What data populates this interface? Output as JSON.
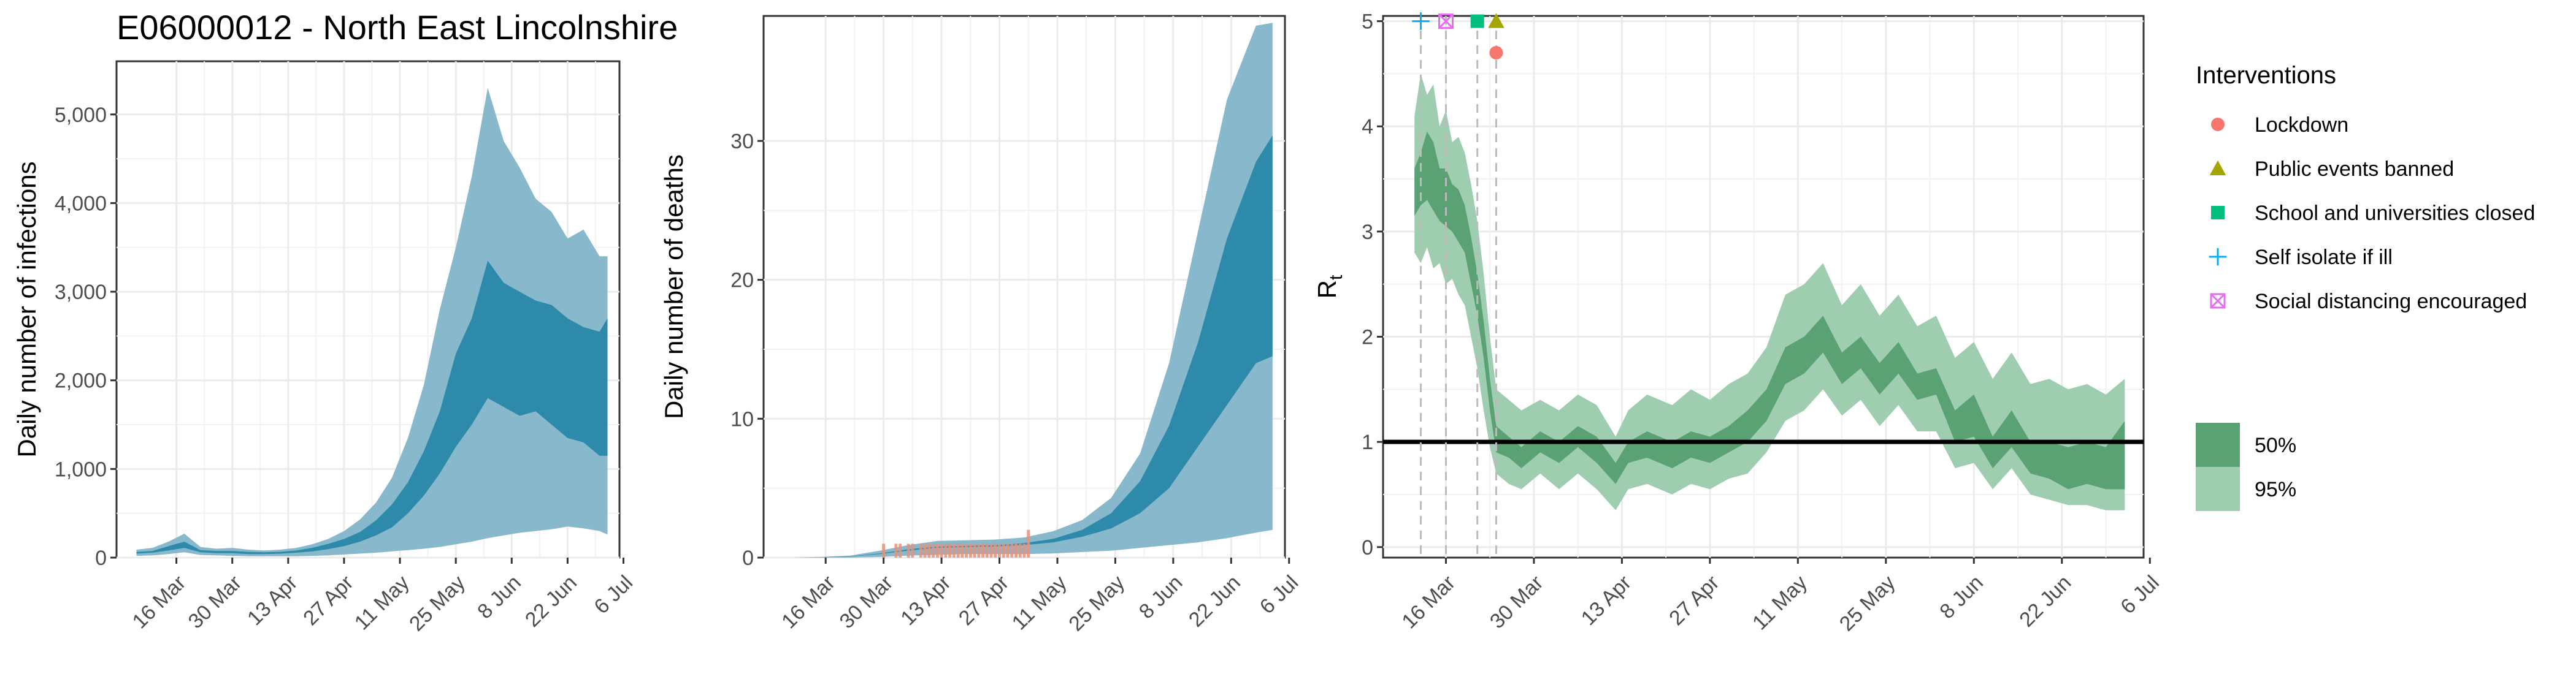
{
  "figure": {
    "title": "E06000012 - North East Lincolnshire"
  },
  "colors": {
    "infection_ci95": "#87b8cc",
    "infection_ci50": "#2d8aab",
    "deaths_ci95": "#87b8cc",
    "deaths_ci50": "#2d8aab",
    "observed_deaths": "#e8907a",
    "rt_ci95": "#9fcdb0",
    "rt_ci50": "#5aa273",
    "threshold_line": "#000000",
    "lockdown": "#f8766d",
    "public_events": "#a3a500",
    "school_closed": "#00bf7d",
    "self_isolate": "#00b0f6",
    "social_distancing": "#e76bf3"
  },
  "legend": {
    "interventions_title": "Interventions",
    "interventions": [
      {
        "label": "Lockdown",
        "shape": "circle"
      },
      {
        "label": "Public events banned",
        "shape": "triangle"
      },
      {
        "label": "School and universities closed",
        "shape": "square"
      },
      {
        "label": "Self isolate if ill",
        "shape": "plus"
      },
      {
        "label": "Social distancing encouraged",
        "shape": "boxcross"
      }
    ],
    "ci": [
      {
        "label": "50%"
      },
      {
        "label": "95%"
      }
    ]
  },
  "chart_data": [
    {
      "type": "area",
      "title": "E06000012 - North East Lincolnshire",
      "xlabel": "",
      "ylabel": "Daily number of infections",
      "x_ticks": [
        "16 Mar",
        "30 Mar",
        "13 Apr",
        "27 Apr",
        "11 May",
        "25 May",
        "8 Jun",
        "22 Jun",
        "6 Jul"
      ],
      "y_ticks": [
        "0",
        "1,000",
        "2,000",
        "3,000",
        "4,000",
        "5,000"
      ],
      "ylim": [
        0,
        5600
      ],
      "x_dates": [
        "Mar 6",
        "Mar 10",
        "Mar 14",
        "Mar 18",
        "Mar 22",
        "Mar 26",
        "Mar 30",
        "Apr 3",
        "Apr 7",
        "Apr 11",
        "Apr 15",
        "Apr 19",
        "Apr 23",
        "Apr 27",
        "May 1",
        "May 5",
        "May 9",
        "May 13",
        "May 17",
        "May 21",
        "May 25",
        "May 29",
        "Jun 2",
        "Jun 6",
        "Jun 10",
        "Jun 14",
        "Jun 18",
        "Jun 22",
        "Jun 26",
        "Jun 30",
        "Jul 2"
      ],
      "series": [
        {
          "name": "95%",
          "lower": [
            20,
            25,
            40,
            60,
            30,
            25,
            20,
            15,
            15,
            15,
            15,
            20,
            25,
            35,
            45,
            55,
            70,
            85,
            100,
            120,
            150,
            180,
            220,
            250,
            280,
            300,
            320,
            350,
            330,
            300,
            260
          ],
          "upper": [
            90,
            110,
            180,
            270,
            120,
            100,
            110,
            90,
            80,
            90,
            110,
            150,
            210,
            300,
            430,
            620,
            900,
            1350,
            1950,
            2800,
            3500,
            4300,
            5300,
            4700,
            4400,
            4050,
            3900,
            3600,
            3700,
            3400,
            3400
          ]
        },
        {
          "name": "50%",
          "lower": [
            45,
            55,
            80,
            110,
            60,
            50,
            50,
            40,
            40,
            45,
            55,
            70,
            95,
            130,
            180,
            250,
            340,
            500,
            700,
            950,
            1250,
            1500,
            1800,
            1700,
            1600,
            1650,
            1500,
            1350,
            1300,
            1150,
            1150
          ],
          "upper": [
            65,
            75,
            130,
            180,
            85,
            75,
            75,
            65,
            60,
            65,
            80,
            110,
            155,
            210,
            290,
            420,
            600,
            850,
            1200,
            1650,
            2300,
            2700,
            3350,
            3100,
            3000,
            2900,
            2850,
            2700,
            2600,
            2550,
            2700
          ]
        }
      ]
    },
    {
      "type": "area",
      "xlabel": "",
      "ylabel": "Daily number of deaths",
      "x_ticks": [
        "16 Mar",
        "30 Mar",
        "13 Apr",
        "27 Apr",
        "11 May",
        "25 May",
        "8 Jun",
        "22 Jun",
        "6 Jul"
      ],
      "y_ticks": [
        "0",
        "10",
        "20",
        "30"
      ],
      "ylim": [
        0,
        39
      ],
      "x_dates": [
        "Mar 8",
        "Mar 15",
        "Mar 22",
        "Mar 29",
        "Apr 5",
        "Apr 12",
        "Apr 19",
        "Apr 26",
        "May 3",
        "May 10",
        "May 17",
        "May 24",
        "May 31",
        "Jun 7",
        "Jun 14",
        "Jun 21",
        "Jun 28",
        "Jul 2"
      ],
      "series": [
        {
          "name": "95%",
          "lower": [
            0,
            0,
            0,
            0.05,
            0.15,
            0.2,
            0.25,
            0.25,
            0.25,
            0.3,
            0.4,
            0.5,
            0.7,
            0.9,
            1.1,
            1.4,
            1.8,
            2
          ],
          "upper": [
            0,
            0.05,
            0.15,
            0.5,
            0.9,
            1.2,
            1.25,
            1.3,
            1.45,
            1.9,
            2.7,
            4.3,
            7.5,
            14,
            23.5,
            33,
            38.3,
            38.5
          ]
        },
        {
          "name": "50%",
          "lower": [
            0,
            0.02,
            0.08,
            0.25,
            0.5,
            0.7,
            0.75,
            0.8,
            0.9,
            1.1,
            1.5,
            2.1,
            3.2,
            5,
            8,
            11,
            14,
            14.5
          ],
          "upper": [
            0,
            0.03,
            0.1,
            0.3,
            0.6,
            0.8,
            0.85,
            0.9,
            1.05,
            1.35,
            2,
            3.2,
            5.5,
            9.5,
            15.5,
            23,
            28.5,
            30.4
          ]
        }
      ],
      "observed_deaths": {
        "dates": [
          "Mar 30",
          "Mar 31",
          "Apr 2",
          "Apr 3",
          "Apr 4",
          "Apr 5",
          "Apr 6",
          "Apr 7",
          "Apr 8",
          "Apr 9",
          "Apr 10",
          "Apr 11",
          "Apr 12",
          "Apr 13",
          "Apr 14",
          "Apr 15",
          "Apr 16",
          "Apr 17",
          "Apr 18",
          "Apr 19",
          "Apr 20",
          "Apr 21",
          "Apr 22",
          "Apr 23",
          "Apr 24",
          "Apr 25",
          "Apr 26",
          "Apr 27",
          "Apr 28",
          "Apr 29",
          "Apr 30",
          "May 1",
          "May 2",
          "May 3",
          "May 4"
        ],
        "values": [
          1,
          0,
          1,
          1,
          0,
          1,
          1,
          0,
          1,
          1,
          1,
          1,
          1,
          1,
          1,
          1,
          1,
          1,
          1,
          1,
          1,
          1,
          1,
          1,
          1,
          1,
          1,
          1,
          1,
          1,
          1,
          1,
          1,
          1,
          2
        ]
      }
    },
    {
      "type": "area",
      "xlabel": "",
      "ylabel": "R",
      "ylabel_sub": "t",
      "x_ticks": [
        "16 Mar",
        "30 Mar",
        "13 Apr",
        "27 Apr",
        "11 May",
        "25 May",
        "8 Jun",
        "22 Jun",
        "6 Jul"
      ],
      "y_ticks": [
        "0",
        "1",
        "2",
        "3",
        "4",
        "5"
      ],
      "ylim": [
        -0.1,
        5.05
      ],
      "reference_line": 1,
      "x_dates": [
        "Mar 11",
        "Mar 12",
        "Mar 13",
        "Mar 14",
        "Mar 15",
        "Mar 16",
        "Mar 17",
        "Mar 18",
        "Mar 19",
        "Mar 20",
        "Mar 21",
        "Mar 22",
        "Mar 23",
        "Mar 24",
        "Mar 26",
        "Mar 28",
        "Mar 31",
        "Apr 3",
        "Apr 6",
        "Apr 9",
        "Apr 12",
        "Apr 14",
        "Apr 17",
        "Apr 21",
        "Apr 24",
        "Apr 27",
        "Apr 30",
        "May 3",
        "May 6",
        "May 9",
        "May 12",
        "May 15",
        "May 18",
        "May 21",
        "May 24",
        "May 27",
        "May 30",
        "Jun 2",
        "Jun 5",
        "Jun 8",
        "Jun 11",
        "Jun 14",
        "Jun 17",
        "Jun 20",
        "Jun 23",
        "Jun 26",
        "Jun 29",
        "Jul 2"
      ],
      "series": [
        {
          "name": "95%",
          "lower": [
            2.8,
            2.7,
            2.85,
            2.65,
            2.7,
            2.5,
            2.55,
            2.4,
            2.3,
            2.0,
            1.7,
            1.3,
            0.95,
            0.7,
            0.6,
            0.55,
            0.7,
            0.55,
            0.7,
            0.55,
            0.35,
            0.55,
            0.6,
            0.5,
            0.6,
            0.55,
            0.65,
            0.7,
            0.9,
            1.2,
            1.3,
            1.5,
            1.25,
            1.4,
            1.15,
            1.35,
            1.1,
            1.1,
            0.75,
            0.8,
            0.55,
            0.75,
            0.5,
            0.45,
            0.4,
            0.4,
            0.35,
            0.35
          ],
          "upper": [
            4.1,
            4.5,
            4.3,
            4.4,
            4.0,
            4.15,
            3.85,
            3.9,
            3.75,
            3.45,
            3.1,
            2.6,
            2.0,
            1.5,
            1.4,
            1.3,
            1.4,
            1.3,
            1.45,
            1.35,
            1.05,
            1.3,
            1.45,
            1.35,
            1.5,
            1.4,
            1.55,
            1.65,
            1.9,
            2.4,
            2.5,
            2.7,
            2.3,
            2.5,
            2.2,
            2.4,
            2.1,
            2.2,
            1.8,
            1.95,
            1.6,
            1.85,
            1.55,
            1.6,
            1.5,
            1.55,
            1.45,
            1.6
          ]
        },
        {
          "name": "50%",
          "lower": [
            3.15,
            3.25,
            3.3,
            3.2,
            3.1,
            3.05,
            3.0,
            2.9,
            2.8,
            2.5,
            2.2,
            1.8,
            1.3,
            0.9,
            0.85,
            0.75,
            0.9,
            0.8,
            0.95,
            0.8,
            0.6,
            0.8,
            0.85,
            0.75,
            0.85,
            0.8,
            0.9,
            1.0,
            1.2,
            1.55,
            1.65,
            1.85,
            1.55,
            1.7,
            1.45,
            1.65,
            1.4,
            1.45,
            1.0,
            1.05,
            0.75,
            0.95,
            0.7,
            0.65,
            0.55,
            0.6,
            0.55,
            0.55
          ],
          "upper": [
            3.6,
            3.75,
            3.95,
            3.85,
            3.6,
            3.6,
            3.45,
            3.4,
            3.25,
            2.95,
            2.6,
            2.15,
            1.6,
            1.15,
            1.05,
            0.95,
            1.1,
            1.0,
            1.15,
            1.05,
            0.8,
            1.0,
            1.1,
            1.0,
            1.1,
            1.05,
            1.15,
            1.3,
            1.5,
            1.9,
            2.0,
            2.2,
            1.85,
            2.0,
            1.75,
            1.95,
            1.65,
            1.7,
            1.3,
            1.45,
            1.05,
            1.3,
            1.0,
            1.0,
            0.95,
            1.0,
            0.95,
            1.2
          ]
        }
      ],
      "interventions": [
        {
          "label": "Self isolate if ill",
          "date": "Mar 12",
          "marker_y": 5.0,
          "shape": "plus"
        },
        {
          "label": "Social distancing encouraged",
          "date": "Mar 16",
          "marker_y": 5.0,
          "shape": "boxcross"
        },
        {
          "label": "School and universities closed",
          "date": "Mar 21",
          "marker_y": 5.0,
          "shape": "square"
        },
        {
          "label": "Public events banned",
          "date": "Mar 24",
          "marker_y": 5.0,
          "shape": "triangle"
        },
        {
          "label": "Lockdown",
          "date": "Mar 24",
          "marker_y": 4.7,
          "shape": "circle"
        }
      ]
    }
  ]
}
